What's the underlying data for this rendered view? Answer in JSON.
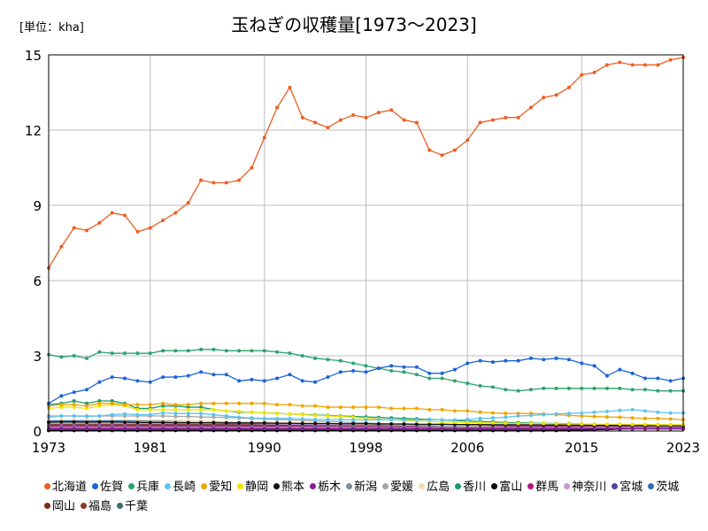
{
  "chart_data": {
    "type": "line",
    "title": "玉ねぎの収穫量[1973～2023]",
    "unit_label": "[単位：kha]",
    "x": [
      1973,
      1974,
      1975,
      1976,
      1977,
      1978,
      1979,
      1980,
      1981,
      1982,
      1983,
      1984,
      1985,
      1986,
      1987,
      1988,
      1989,
      1990,
      1991,
      1992,
      1993,
      1994,
      1995,
      1996,
      1997,
      1998,
      1999,
      2000,
      2001,
      2002,
      2003,
      2004,
      2005,
      2006,
      2007,
      2008,
      2009,
      2010,
      2011,
      2012,
      2013,
      2014,
      2015,
      2016,
      2017,
      2018,
      2019,
      2020,
      2021,
      2022,
      2023
    ],
    "xticks": [
      "1973",
      "1981",
      "1990",
      "1998",
      "2006",
      "2015",
      "2023"
    ],
    "yticks": [
      "0",
      "3",
      "6",
      "9",
      "12",
      "15"
    ],
    "ylim": [
      0,
      15
    ],
    "grid": true,
    "legend_position": "bottom",
    "series": [
      {
        "name": "北海道",
        "color": "#ed5d22",
        "values": [
          6.5,
          7.35,
          8.1,
          8.0,
          8.3,
          8.7,
          8.6,
          7.95,
          8.1,
          8.4,
          8.7,
          9.1,
          10.0,
          9.9,
          9.9,
          10.0,
          10.5,
          11.7,
          12.9,
          13.7,
          12.5,
          12.3,
          12.1,
          12.4,
          12.6,
          12.5,
          12.7,
          12.8,
          12.4,
          12.3,
          11.2,
          11.0,
          11.2,
          11.6,
          12.3,
          12.4,
          12.5,
          12.5,
          12.9,
          13.3,
          13.4,
          13.7,
          14.2,
          14.3,
          14.6,
          14.7,
          14.6,
          14.6,
          14.6,
          14.8,
          14.9
        ]
      },
      {
        "name": "佐賀",
        "color": "#1b63d8",
        "values": [
          1.1,
          1.4,
          1.55,
          1.65,
          1.95,
          2.15,
          2.1,
          2.0,
          1.95,
          2.15,
          2.15,
          2.2,
          2.35,
          2.25,
          2.25,
          2.0,
          2.05,
          2.0,
          2.1,
          2.25,
          2.0,
          1.95,
          2.15,
          2.35,
          2.4,
          2.35,
          2.5,
          2.6,
          2.55,
          2.55,
          2.3,
          2.3,
          2.45,
          2.7,
          2.8,
          2.75,
          2.8,
          2.8,
          2.9,
          2.85,
          2.9,
          2.85,
          2.7,
          2.6,
          2.2,
          2.45,
          2.3,
          2.1,
          2.1,
          2.0,
          2.1
        ]
      },
      {
        "name": "兵庫",
        "color": "#2aa36a",
        "values": [
          3.05,
          2.95,
          3.0,
          2.9,
          3.15,
          3.1,
          3.1,
          3.1,
          3.1,
          3.2,
          3.2,
          3.2,
          3.25,
          3.25,
          3.2,
          3.2,
          3.2,
          3.2,
          3.15,
          3.1,
          3.0,
          2.9,
          2.85,
          2.8,
          2.7,
          2.6,
          2.5,
          2.4,
          2.35,
          2.25,
          2.1,
          2.1,
          2.0,
          1.9,
          1.8,
          1.75,
          1.65,
          1.6,
          1.65,
          1.7,
          1.7,
          1.7,
          1.7,
          1.7,
          1.7,
          1.7,
          1.65,
          1.65,
          1.6,
          1.6,
          1.6
        ]
      },
      {
        "name": "長崎",
        "color": "#5fc3ee",
        "values": [
          0.55,
          0.6,
          0.6,
          0.58,
          0.6,
          0.65,
          0.68,
          0.65,
          0.65,
          0.72,
          0.7,
          0.7,
          0.7,
          0.65,
          0.6,
          0.55,
          0.52,
          0.5,
          0.5,
          0.5,
          0.48,
          0.46,
          0.45,
          0.45,
          0.44,
          0.44,
          0.45,
          0.45,
          0.44,
          0.44,
          0.44,
          0.44,
          0.44,
          0.46,
          0.5,
          0.52,
          0.55,
          0.6,
          0.62,
          0.65,
          0.68,
          0.7,
          0.72,
          0.75,
          0.78,
          0.82,
          0.85,
          0.8,
          0.75,
          0.72,
          0.72
        ]
      },
      {
        "name": "愛知",
        "color": "#f0a500",
        "values": [
          1.0,
          1.05,
          1.05,
          1.0,
          1.1,
          1.1,
          1.05,
          1.05,
          1.05,
          1.1,
          1.05,
          1.05,
          1.1,
          1.1,
          1.1,
          1.1,
          1.1,
          1.1,
          1.05,
          1.05,
          1.0,
          1.0,
          0.95,
          0.95,
          0.95,
          0.95,
          0.95,
          0.9,
          0.9,
          0.9,
          0.85,
          0.85,
          0.8,
          0.8,
          0.75,
          0.72,
          0.7,
          0.7,
          0.7,
          0.68,
          0.65,
          0.62,
          0.6,
          0.58,
          0.56,
          0.55,
          0.52,
          0.5,
          0.5,
          0.48,
          0.45
        ]
      },
      {
        "name": "静岡",
        "color": "#f2e500",
        "values": [
          0.9,
          0.95,
          0.95,
          0.9,
          1.0,
          1.05,
          1.0,
          0.85,
          0.85,
          0.85,
          0.85,
          0.85,
          0.85,
          0.85,
          0.8,
          0.78,
          0.75,
          0.72,
          0.7,
          0.68,
          0.65,
          0.62,
          0.6,
          0.58,
          0.55,
          0.5,
          0.48,
          0.45,
          0.42,
          0.4,
          0.38,
          0.36,
          0.35,
          0.34,
          0.33,
          0.32,
          0.31,
          0.3,
          0.3,
          0.3,
          0.29,
          0.28,
          0.28,
          0.27,
          0.27,
          0.27,
          0.26,
          0.26,
          0.25,
          0.25,
          0.25
        ]
      },
      {
        "name": "熊本",
        "color": "#111111",
        "values": [
          0.35,
          0.36,
          0.36,
          0.35,
          0.36,
          0.36,
          0.35,
          0.34,
          0.34,
          0.34,
          0.33,
          0.33,
          0.33,
          0.33,
          0.32,
          0.32,
          0.32,
          0.32,
          0.31,
          0.31,
          0.3,
          0.3,
          0.3,
          0.29,
          0.29,
          0.29,
          0.28,
          0.28,
          0.28,
          0.27,
          0.27,
          0.27,
          0.26,
          0.26,
          0.26,
          0.25,
          0.25,
          0.25,
          0.25,
          0.24,
          0.24,
          0.24,
          0.24,
          0.23,
          0.23,
          0.23,
          0.23,
          0.22,
          0.22,
          0.22,
          0.22
        ]
      },
      {
        "name": "栃木",
        "color": "#8b1a9b",
        "values": [
          0.1,
          0.1,
          0.1,
          0.1,
          0.1,
          0.1,
          0.1,
          0.1,
          0.1,
          0.1,
          0.1,
          0.1,
          0.1,
          0.1,
          0.1,
          0.1,
          0.1,
          0.1,
          0.1,
          0.1,
          0.1,
          0.1,
          0.1,
          0.1,
          0.1,
          0.1,
          0.1,
          0.1,
          0.1,
          0.1,
          0.1,
          0.1,
          0.1,
          0.1,
          0.1,
          0.1,
          0.1,
          0.1,
          0.1,
          0.1,
          0.1,
          0.1,
          0.1,
          0.1,
          0.1,
          0.1,
          0.1,
          0.1,
          0.1,
          0.1,
          0.1
        ]
      },
      {
        "name": "新潟",
        "color": "#7f8c99",
        "values": [
          0.15,
          0.15,
          0.15,
          0.15,
          0.15,
          0.15,
          0.15,
          0.15,
          0.15,
          0.15,
          0.15,
          0.15,
          0.15,
          0.15,
          0.15,
          0.15,
          0.15,
          0.15,
          0.15,
          0.15,
          0.15,
          0.15,
          0.15,
          0.15,
          0.15,
          0.15,
          0.15,
          0.15,
          0.15,
          0.15,
          0.15,
          0.15,
          0.15,
          0.15,
          0.15,
          0.15,
          0.15,
          0.15,
          0.15,
          0.15,
          0.15,
          0.15,
          0.15,
          0.15,
          0.15,
          0.15,
          0.15,
          0.15,
          0.15,
          0.15,
          0.15
        ]
      },
      {
        "name": "愛媛",
        "color": "#a6a6a6",
        "values": [
          0.6,
          0.6,
          0.6,
          0.6,
          0.6,
          0.6,
          0.6,
          0.6,
          0.6,
          0.6,
          0.58,
          0.58,
          0.56,
          0.55,
          0.54,
          0.52,
          0.5,
          0.48,
          0.46,
          0.44,
          0.42,
          0.4,
          0.38,
          0.36,
          0.34,
          0.32,
          0.3,
          0.28,
          0.26,
          0.24,
          0.22,
          0.2,
          0.18,
          0.17,
          0.16,
          0.15,
          0.14,
          0.14,
          0.13,
          0.13,
          0.12,
          0.12,
          0.12,
          0.11,
          0.11,
          0.11,
          0.1,
          0.1,
          0.1,
          0.1,
          0.1
        ]
      },
      {
        "name": "広島",
        "color": "#f3dcb0",
        "values": [
          0.45,
          0.45,
          0.45,
          0.45,
          0.45,
          0.45,
          0.44,
          0.44,
          0.43,
          0.43,
          0.42,
          0.41,
          0.4,
          0.39,
          0.38,
          0.37,
          0.36,
          0.35,
          0.34,
          0.33,
          0.32,
          0.31,
          0.3,
          0.29,
          0.28,
          0.27,
          0.26,
          0.25,
          0.24,
          0.23,
          0.22,
          0.21,
          0.2,
          0.19,
          0.18,
          0.17,
          0.16,
          0.15,
          0.15,
          0.14,
          0.14,
          0.13,
          0.13,
          0.12,
          0.12,
          0.12,
          0.11,
          0.11,
          0.11,
          0.1,
          0.1
        ]
      },
      {
        "name": "香川",
        "color": "#1a9a6c",
        "values": [
          1.05,
          1.1,
          1.2,
          1.1,
          1.2,
          1.2,
          1.1,
          0.9,
          0.9,
          1.0,
          1.0,
          0.95,
          0.95,
          0.85,
          0.8,
          0.75,
          0.75,
          0.72,
          0.7,
          0.68,
          0.66,
          0.64,
          0.62,
          0.6,
          0.58,
          0.56,
          0.54,
          0.52,
          0.5,
          0.48,
          0.46,
          0.44,
          0.42,
          0.4,
          0.38,
          0.36,
          0.34,
          0.33,
          0.32,
          0.31,
          0.3,
          0.29,
          0.28,
          0.27,
          0.26,
          0.26,
          0.25,
          0.25,
          0.25,
          0.24,
          0.24
        ]
      },
      {
        "name": "富山",
        "color": "#000000",
        "values": [
          0.02,
          0.02,
          0.02,
          0.02,
          0.02,
          0.02,
          0.02,
          0.02,
          0.02,
          0.02,
          0.02,
          0.02,
          0.02,
          0.02,
          0.02,
          0.02,
          0.02,
          0.02,
          0.02,
          0.02,
          0.02,
          0.02,
          0.02,
          0.02,
          0.02,
          0.02,
          0.02,
          0.02,
          0.02,
          0.02,
          0.02,
          0.02,
          0.02,
          0.02,
          0.02,
          0.02,
          0.02,
          0.02,
          0.02,
          0.02,
          0.02,
          0.03,
          0.04,
          0.05,
          0.06,
          0.08,
          0.1,
          0.12,
          0.13,
          0.14,
          0.15
        ]
      },
      {
        "name": "群馬",
        "color": "#b0177d",
        "values": [
          0.2,
          0.2,
          0.2,
          0.2,
          0.2,
          0.2,
          0.2,
          0.2,
          0.2,
          0.2,
          0.2,
          0.2,
          0.2,
          0.2,
          0.2,
          0.2,
          0.2,
          0.2,
          0.2,
          0.2,
          0.2,
          0.2,
          0.2,
          0.2,
          0.2,
          0.2,
          0.2,
          0.2,
          0.2,
          0.2,
          0.2,
          0.2,
          0.2,
          0.2,
          0.2,
          0.2,
          0.2,
          0.2,
          0.2,
          0.2,
          0.2,
          0.2,
          0.2,
          0.2,
          0.2,
          0.2,
          0.2,
          0.2,
          0.2,
          0.2,
          0.2
        ]
      },
      {
        "name": "神奈川",
        "color": "#c39bd3",
        "values": [
          0.3,
          0.3,
          0.3,
          0.3,
          0.3,
          0.3,
          0.3,
          0.3,
          0.3,
          0.3,
          0.3,
          0.3,
          0.3,
          0.3,
          0.3,
          0.29,
          0.29,
          0.28,
          0.28,
          0.27,
          0.27,
          0.26,
          0.26,
          0.25,
          0.25,
          0.24,
          0.24,
          0.23,
          0.23,
          0.22,
          0.22,
          0.21,
          0.21,
          0.2,
          0.2,
          0.19,
          0.19,
          0.18,
          0.18,
          0.17,
          0.17,
          0.16,
          0.16,
          0.15,
          0.15,
          0.15,
          0.14,
          0.14,
          0.14,
          0.13,
          0.13
        ]
      },
      {
        "name": "宮城",
        "color": "#5b3fa3",
        "values": [
          0.05,
          0.05,
          0.05,
          0.05,
          0.05,
          0.05,
          0.05,
          0.05,
          0.05,
          0.05,
          0.05,
          0.05,
          0.05,
          0.05,
          0.05,
          0.05,
          0.05,
          0.05,
          0.05,
          0.05,
          0.05,
          0.05,
          0.05,
          0.05,
          0.05,
          0.05,
          0.05,
          0.05,
          0.05,
          0.05,
          0.05,
          0.05,
          0.05,
          0.05,
          0.05,
          0.05,
          0.05,
          0.05,
          0.05,
          0.05,
          0.05,
          0.05,
          0.05,
          0.06,
          0.07,
          0.08,
          0.09,
          0.1,
          0.11,
          0.12,
          0.12
        ]
      },
      {
        "name": "茨城",
        "color": "#2f6db5",
        "values": [
          0.4,
          0.4,
          0.4,
          0.4,
          0.4,
          0.4,
          0.4,
          0.4,
          0.4,
          0.4,
          0.4,
          0.4,
          0.4,
          0.38,
          0.36,
          0.34,
          0.32,
          0.3,
          0.28,
          0.26,
          0.25,
          0.24,
          0.23,
          0.22,
          0.21,
          0.2,
          0.2,
          0.19,
          0.19,
          0.18,
          0.18,
          0.18,
          0.17,
          0.17,
          0.17,
          0.16,
          0.16,
          0.16,
          0.15,
          0.15,
          0.15,
          0.15,
          0.14,
          0.14,
          0.14,
          0.14,
          0.14,
          0.13,
          0.13,
          0.13,
          0.13
        ]
      },
      {
        "name": "岡山",
        "color": "#7a2b16",
        "values": [
          0.25,
          0.25,
          0.25,
          0.25,
          0.25,
          0.25,
          0.25,
          0.25,
          0.25,
          0.25,
          0.25,
          0.25,
          0.25,
          0.25,
          0.25,
          0.24,
          0.24,
          0.23,
          0.23,
          0.22,
          0.22,
          0.21,
          0.21,
          0.2,
          0.2,
          0.19,
          0.19,
          0.18,
          0.18,
          0.17,
          0.17,
          0.16,
          0.16,
          0.15,
          0.15,
          0.14,
          0.14,
          0.13,
          0.13,
          0.12,
          0.12,
          0.12,
          0.11,
          0.11,
          0.11,
          0.1,
          0.1,
          0.1,
          0.1,
          0.1,
          0.1
        ]
      },
      {
        "name": "福島",
        "color": "#8a3a1c",
        "values": [
          0.08,
          0.08,
          0.08,
          0.08,
          0.08,
          0.08,
          0.08,
          0.08,
          0.08,
          0.08,
          0.08,
          0.08,
          0.08,
          0.08,
          0.08,
          0.08,
          0.08,
          0.08,
          0.08,
          0.08,
          0.08,
          0.08,
          0.08,
          0.08,
          0.08,
          0.08,
          0.08,
          0.08,
          0.08,
          0.08,
          0.08,
          0.08,
          0.08,
          0.08,
          0.08,
          0.08,
          0.08,
          0.08,
          0.08,
          0.08,
          0.08,
          0.08,
          0.08,
          0.08,
          0.08,
          0.08,
          0.08,
          0.08,
          0.08,
          0.08,
          0.08
        ]
      },
      {
        "name": "千葉",
        "color": "#3c6e6a",
        "values": [
          0.28,
          0.28,
          0.28,
          0.28,
          0.28,
          0.28,
          0.28,
          0.28,
          0.28,
          0.28,
          0.28,
          0.28,
          0.28,
          0.28,
          0.27,
          0.27,
          0.26,
          0.26,
          0.25,
          0.25,
          0.24,
          0.24,
          0.23,
          0.23,
          0.22,
          0.22,
          0.21,
          0.21,
          0.2,
          0.2,
          0.19,
          0.19,
          0.18,
          0.18,
          0.17,
          0.17,
          0.16,
          0.16,
          0.15,
          0.15,
          0.15,
          0.14,
          0.14,
          0.14,
          0.13,
          0.13,
          0.13,
          0.12,
          0.12,
          0.12,
          0.12
        ]
      }
    ]
  }
}
